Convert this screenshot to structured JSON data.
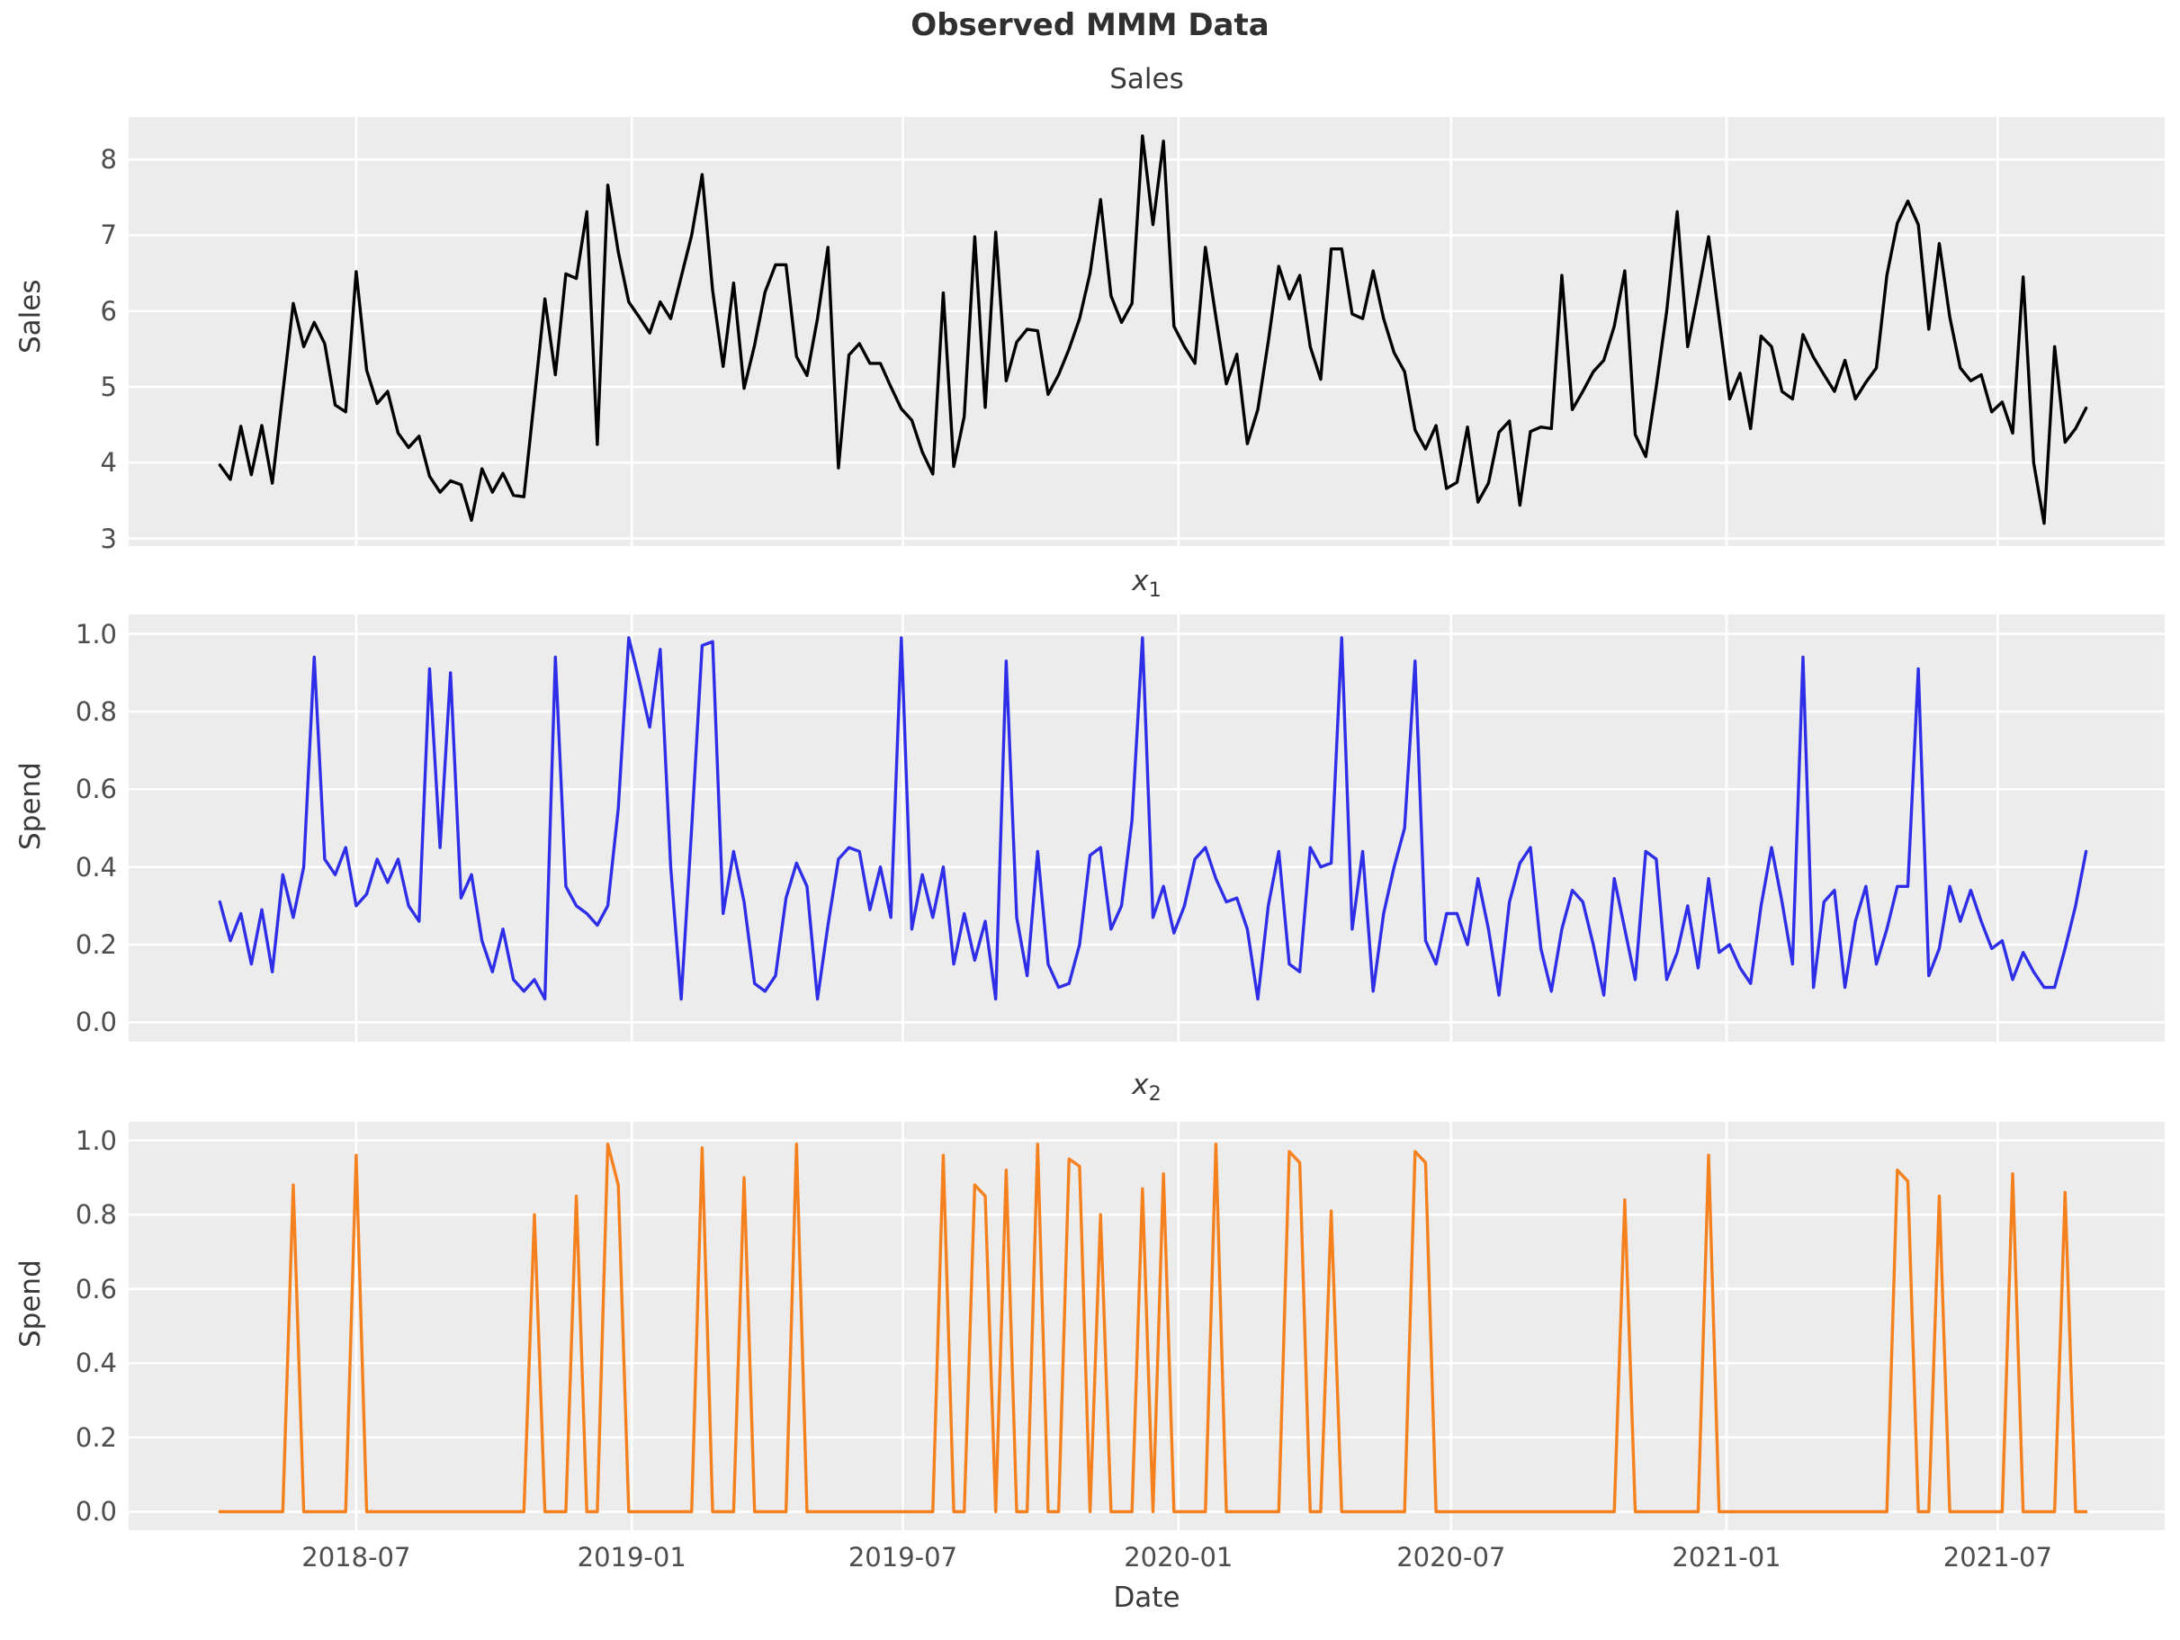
{
  "title": "Observed MMM Data",
  "x_axis": {
    "label": "Date",
    "tick_labels": [
      "2018-07",
      "2019-01",
      "2019-07",
      "2020-01",
      "2020-07",
      "2021-01",
      "2021-07"
    ],
    "tick_positions_week_index": [
      13.0,
      39.29,
      65.14,
      91.43,
      117.43,
      143.71,
      169.57
    ],
    "xlim_week_index": [
      -8.7,
      185.5
    ],
    "start_date": "2018-04-01",
    "frequency": "weekly",
    "n_points": 179
  },
  "style": {
    "plot_background": "#ececec",
    "grid_color": "#ffffff",
    "sales_color": "#000000",
    "x1_color": "#2e2ee8",
    "x2_color": "#f5801e"
  },
  "chart_data": [
    {
      "type": "line",
      "name": "sales",
      "title_base": "Sales",
      "title_sub": "",
      "ylabel": "Sales",
      "color": "#000000",
      "ytick_labels": [
        "3",
        "4",
        "5",
        "6",
        "7",
        "8"
      ],
      "ytick_values": [
        3,
        4,
        5,
        6,
        7,
        8
      ],
      "ylim": [
        2.9,
        8.56
      ],
      "values": [
        3.97,
        3.78,
        4.48,
        3.84,
        4.49,
        3.73,
        4.92,
        6.1,
        5.53,
        5.85,
        5.57,
        4.76,
        4.67,
        6.52,
        5.22,
        4.78,
        4.94,
        4.39,
        4.2,
        4.35,
        3.82,
        3.61,
        3.76,
        3.71,
        3.24,
        3.92,
        3.61,
        3.86,
        3.57,
        3.55,
        4.85,
        6.16,
        5.16,
        6.49,
        6.43,
        7.31,
        4.24,
        7.66,
        6.78,
        6.12,
        5.92,
        5.71,
        6.12,
        5.9,
        6.45,
        7.0,
        7.8,
        6.27,
        5.27,
        6.37,
        4.98,
        5.55,
        6.25,
        6.61,
        6.61,
        5.4,
        5.15,
        5.9,
        6.84,
        3.93,
        5.42,
        5.57,
        5.31,
        5.31,
        5.0,
        4.71,
        4.56,
        4.14,
        3.85,
        6.24,
        3.95,
        4.61,
        6.98,
        4.73,
        7.04,
        5.08,
        5.59,
        5.76,
        5.74,
        4.9,
        5.16,
        5.5,
        5.9,
        6.5,
        7.47,
        6.2,
        5.85,
        6.1,
        8.31,
        7.14,
        8.24,
        5.8,
        5.53,
        5.31,
        6.84,
        5.92,
        5.04,
        5.43,
        4.25,
        4.7,
        5.6,
        6.59,
        6.16,
        6.47,
        5.53,
        5.1,
        6.82,
        6.82,
        5.96,
        5.9,
        6.53,
        5.9,
        5.45,
        5.2,
        4.43,
        4.18,
        4.49,
        3.66,
        3.74,
        4.47,
        3.48,
        3.73,
        4.4,
        4.55,
        3.44,
        4.41,
        4.47,
        4.45,
        6.47,
        4.7,
        4.94,
        5.2,
        5.35,
        5.8,
        6.53,
        4.37,
        4.08,
        5.0,
        6.0,
        7.31,
        5.53,
        6.24,
        6.98,
        5.9,
        4.84,
        5.18,
        4.45,
        5.67,
        5.53,
        4.94,
        4.84,
        5.69,
        5.39,
        5.16,
        4.94,
        5.35,
        4.84,
        5.06,
        5.25,
        6.47,
        7.16,
        7.45,
        7.14,
        5.76,
        6.89,
        5.92,
        5.25,
        5.08,
        5.16,
        4.67,
        4.8,
        4.39,
        6.45,
        4.0,
        3.2,
        5.53,
        4.27,
        4.45,
        4.72
      ]
    },
    {
      "type": "line",
      "name": "x1",
      "title_base": "x",
      "title_sub": "1",
      "ylabel": "Spend",
      "color": "#2e2ee8",
      "ytick_labels": [
        "0.0",
        "0.2",
        "0.4",
        "0.6",
        "0.8",
        "1.0"
      ],
      "ytick_values": [
        0.0,
        0.2,
        0.4,
        0.6,
        0.8,
        1.0
      ],
      "ylim": [
        -0.05,
        1.05
      ],
      "values": [
        0.31,
        0.21,
        0.28,
        0.15,
        0.29,
        0.13,
        0.38,
        0.27,
        0.4,
        0.94,
        0.42,
        0.38,
        0.45,
        0.3,
        0.33,
        0.42,
        0.36,
        0.42,
        0.3,
        0.26,
        0.91,
        0.45,
        0.9,
        0.32,
        0.38,
        0.21,
        0.13,
        0.24,
        0.11,
        0.08,
        0.11,
        0.06,
        0.94,
        0.35,
        0.3,
        0.28,
        0.25,
        0.3,
        0.55,
        0.99,
        0.88,
        0.76,
        0.96,
        0.4,
        0.06,
        0.5,
        0.97,
        0.98,
        0.28,
        0.44,
        0.31,
        0.1,
        0.08,
        0.12,
        0.32,
        0.41,
        0.35,
        0.06,
        0.25,
        0.42,
        0.45,
        0.44,
        0.29,
        0.4,
        0.27,
        0.99,
        0.24,
        0.38,
        0.27,
        0.4,
        0.15,
        0.28,
        0.16,
        0.26,
        0.06,
        0.93,
        0.27,
        0.12,
        0.44,
        0.15,
        0.09,
        0.1,
        0.2,
        0.43,
        0.45,
        0.24,
        0.3,
        0.52,
        0.99,
        0.27,
        0.35,
        0.23,
        0.3,
        0.42,
        0.45,
        0.37,
        0.31,
        0.32,
        0.24,
        0.06,
        0.3,
        0.44,
        0.15,
        0.13,
        0.45,
        0.4,
        0.41,
        0.99,
        0.24,
        0.44,
        0.08,
        0.28,
        0.4,
        0.5,
        0.93,
        0.21,
        0.15,
        0.28,
        0.28,
        0.2,
        0.37,
        0.24,
        0.07,
        0.31,
        0.41,
        0.45,
        0.19,
        0.08,
        0.24,
        0.34,
        0.31,
        0.2,
        0.07,
        0.37,
        0.24,
        0.11,
        0.44,
        0.42,
        0.11,
        0.18,
        0.3,
        0.14,
        0.37,
        0.18,
        0.2,
        0.14,
        0.1,
        0.3,
        0.45,
        0.31,
        0.15,
        0.94,
        0.09,
        0.31,
        0.34,
        0.09,
        0.26,
        0.35,
        0.15,
        0.24,
        0.35,
        0.35,
        0.91,
        0.12,
        0.19,
        0.35,
        0.26,
        0.34,
        0.26,
        0.19,
        0.21,
        0.11,
        0.18,
        0.13,
        0.09,
        0.09,
        0.19,
        0.3,
        0.44
      ]
    },
    {
      "type": "line",
      "name": "x2",
      "title_base": "x",
      "title_sub": "2",
      "ylabel": "Spend",
      "color": "#f5801e",
      "ytick_labels": [
        "0.0",
        "0.2",
        "0.4",
        "0.6",
        "0.8",
        "1.0"
      ],
      "ytick_values": [
        0.0,
        0.2,
        0.4,
        0.6,
        0.8,
        1.0
      ],
      "ylim": [
        -0.05,
        1.05
      ],
      "values": [
        0,
        0,
        0,
        0,
        0,
        0,
        0,
        0.88,
        0,
        0,
        0,
        0,
        0,
        0.96,
        0,
        0,
        0,
        0,
        0,
        0,
        0,
        0,
        0,
        0,
        0,
        0,
        0,
        0,
        0,
        0,
        0.8,
        0,
        0,
        0,
        0.85,
        0,
        0,
        0.99,
        0.88,
        0,
        0,
        0,
        0,
        0,
        0,
        0,
        0.98,
        0,
        0,
        0,
        0.9,
        0,
        0,
        0,
        0,
        0.99,
        0,
        0,
        0,
        0,
        0,
        0,
        0,
        0,
        0,
        0,
        0,
        0,
        0,
        0.96,
        0,
        0,
        0.88,
        0.85,
        0,
        0.92,
        0,
        0,
        0.99,
        0,
        0,
        0.95,
        0.93,
        0,
        0.8,
        0,
        0,
        0,
        0.87,
        0,
        0.91,
        0,
        0,
        0,
        0,
        0.99,
        0,
        0,
        0,
        0,
        0,
        0,
        0.97,
        0.94,
        0,
        0,
        0.81,
        0,
        0,
        0,
        0,
        0,
        0,
        0,
        0.97,
        0.94,
        0,
        0,
        0,
        0,
        0,
        0,
        0,
        0,
        0,
        0,
        0,
        0,
        0,
        0,
        0,
        0,
        0,
        0,
        0.84,
        0,
        0,
        0,
        0,
        0,
        0,
        0,
        0.96,
        0,
        0,
        0,
        0,
        0,
        0,
        0,
        0,
        0,
        0,
        0,
        0,
        0,
        0,
        0,
        0,
        0,
        0.92,
        0.89,
        0,
        0,
        0.85,
        0,
        0,
        0,
        0,
        0,
        0,
        0.91,
        0,
        0,
        0,
        0,
        0.86,
        0,
        0
      ]
    }
  ]
}
